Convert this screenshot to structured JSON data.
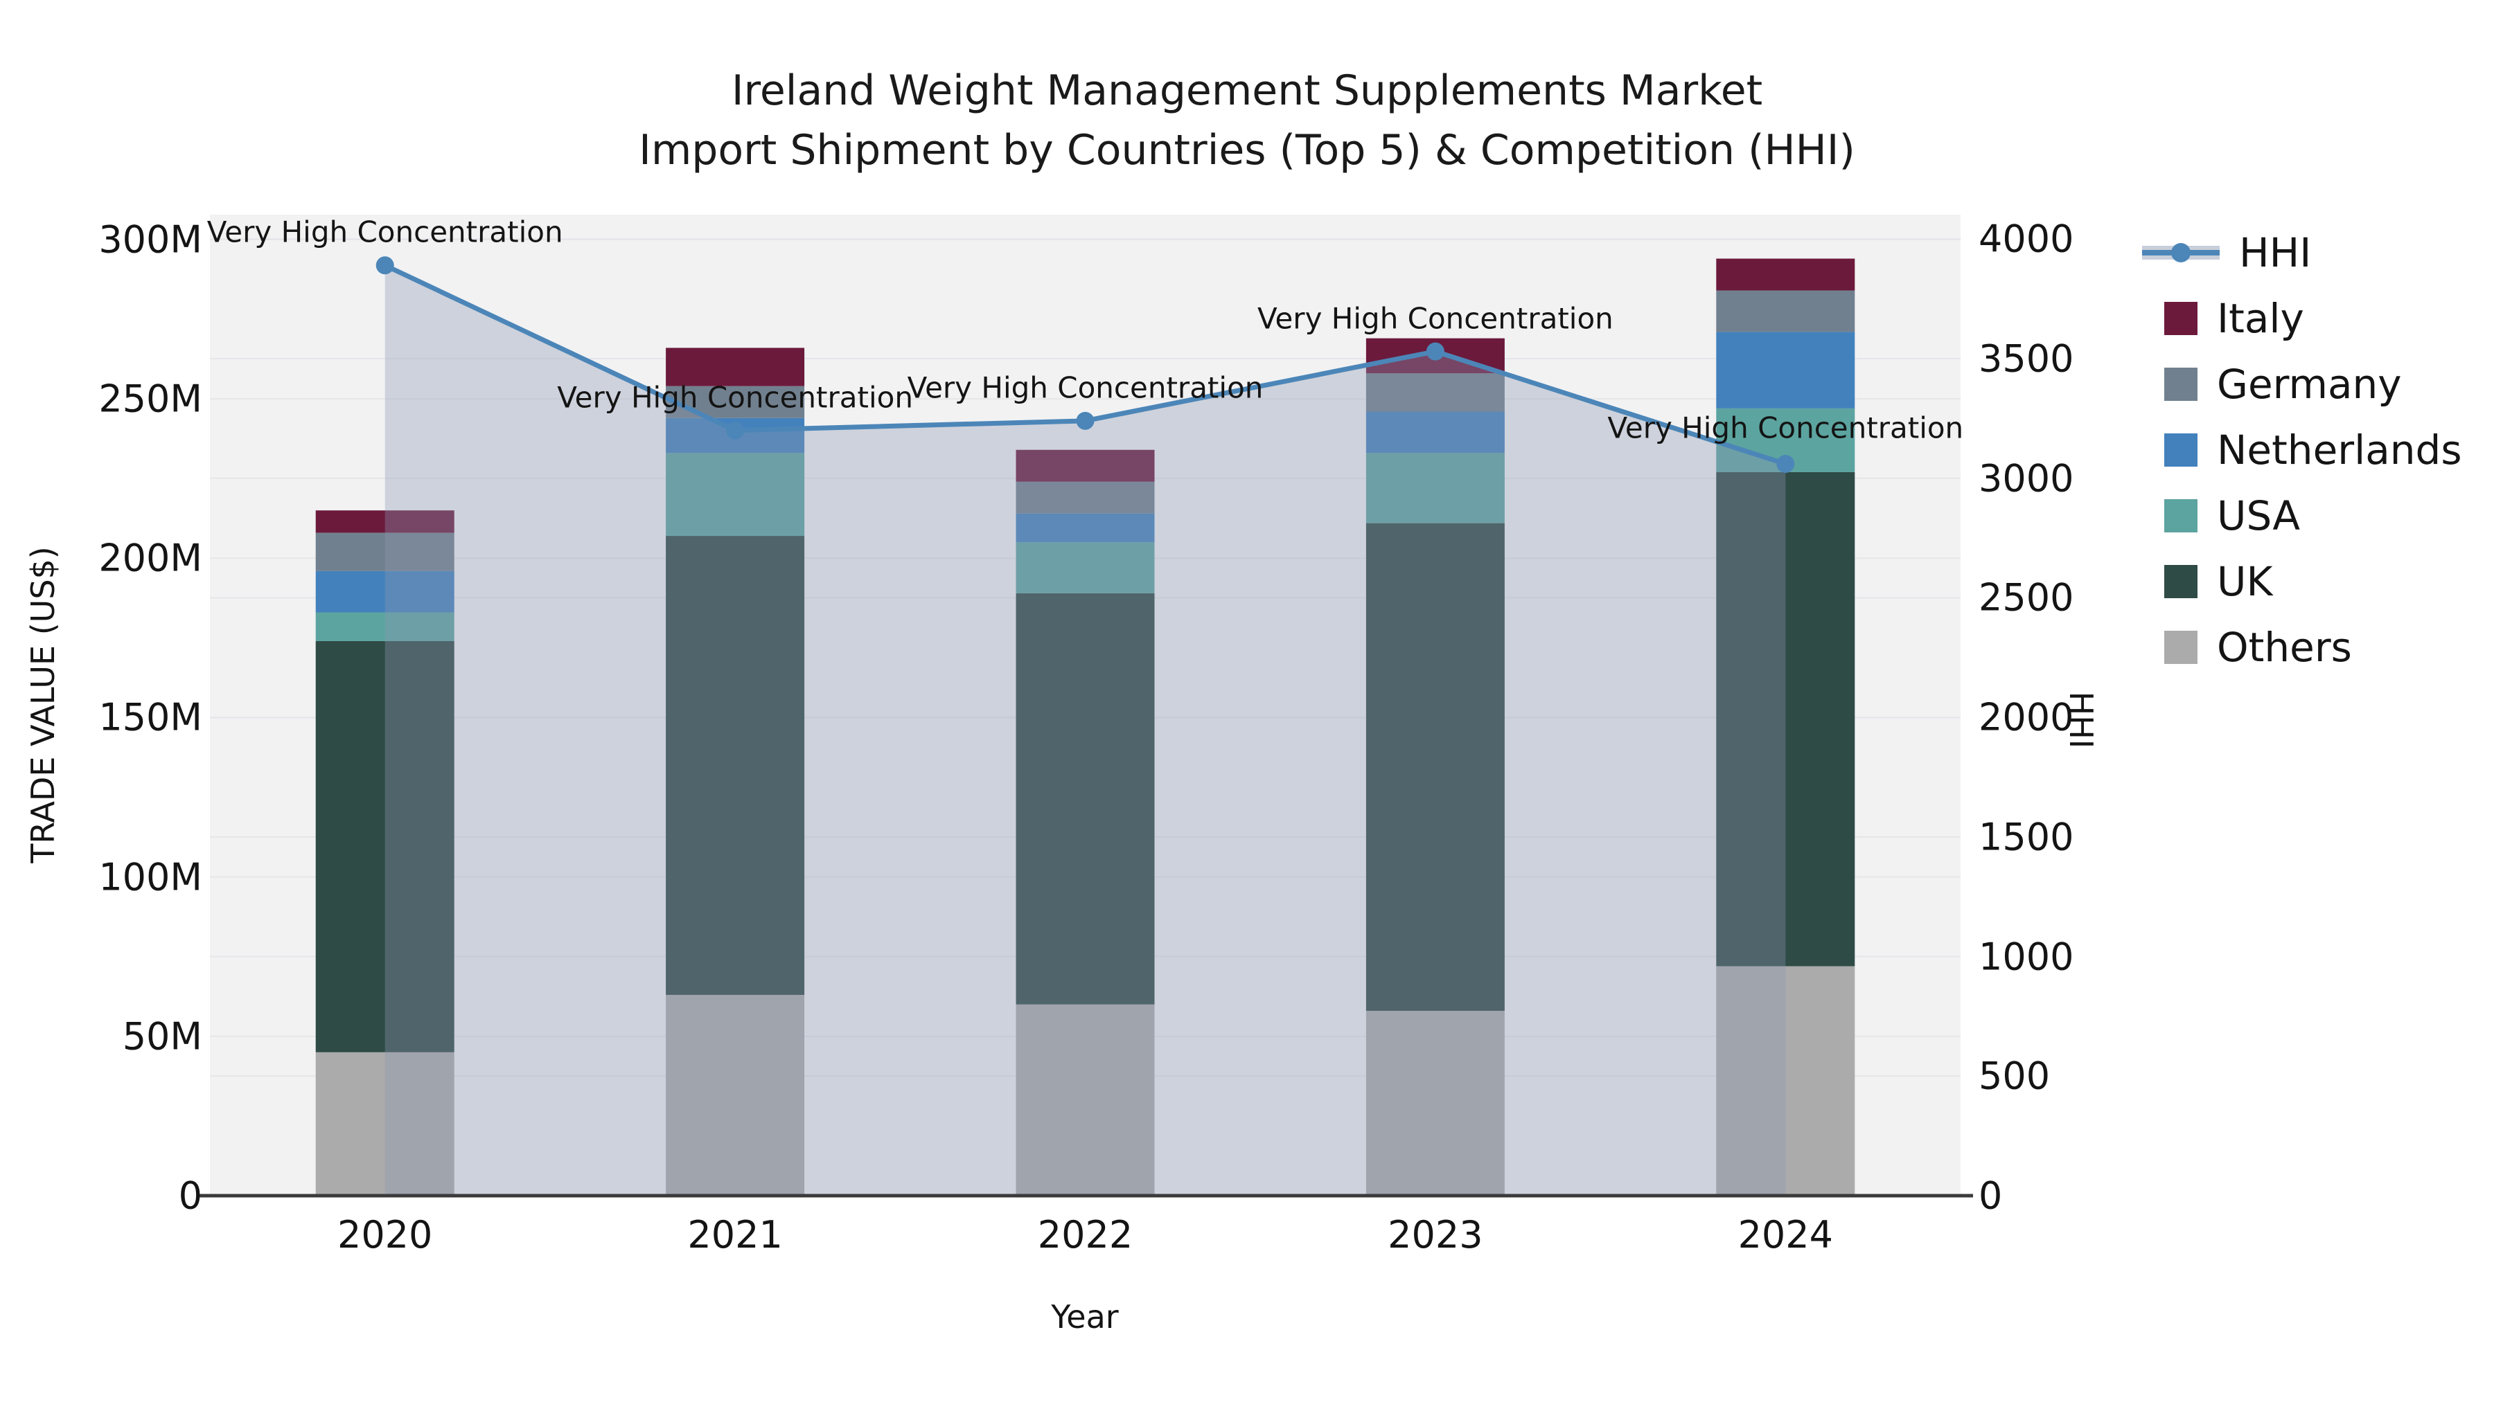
{
  "title": {
    "line1": "Ireland Weight Management Supplements Market",
    "line2": "Import Shipment by Countries (Top 5) & Competition (HHI)"
  },
  "axes": {
    "left": {
      "title": "TRADE VALUE (US$)",
      "ticks": [
        "0",
        "50M",
        "100M",
        "150M",
        "200M",
        "250M",
        "300M"
      ],
      "max": 300
    },
    "right": {
      "title": "HHI",
      "ticks": [
        "0",
        "500",
        "1000",
        "1500",
        "2000",
        "2500",
        "3000",
        "3500",
        "4000"
      ],
      "max": 4000
    },
    "x": {
      "title": "Year"
    }
  },
  "legend": {
    "items": [
      {
        "label": "HHI",
        "kind": "line",
        "color": "#4C86B8",
        "band": "#C8CEDA"
      },
      {
        "label": "Italy",
        "kind": "swatch",
        "color": "#6C1A3C"
      },
      {
        "label": "Germany",
        "kind": "swatch",
        "color": "#71808E"
      },
      {
        "label": "Netherlands",
        "kind": "swatch",
        "color": "#4381BC"
      },
      {
        "label": "USA",
        "kind": "swatch",
        "color": "#5CA4A0"
      },
      {
        "label": "UK",
        "kind": "swatch",
        "color": "#2F4B46"
      },
      {
        "label": "Others",
        "kind": "swatch",
        "color": "#ABABAB"
      }
    ]
  },
  "chart_data": {
    "type": "bar+line",
    "title": "Ireland Weight Management Supplements Market — Import Shipment by Countries (Top 5) & Competition (HHI)",
    "categories": [
      "2020",
      "2021",
      "2022",
      "2023",
      "2024"
    ],
    "units_left": "Million US$",
    "ylim_left": [
      0,
      300
    ],
    "ylim_right": [
      0,
      4000
    ],
    "ylabel_left": "TRADE VALUE (US$)",
    "ylabel_right": "HHI",
    "xlabel": "Year",
    "grid": true,
    "legend_position": "right",
    "series": [
      {
        "name": "Others",
        "color": "#ABABAB",
        "values": [
          45,
          63,
          60,
          58,
          72
        ]
      },
      {
        "name": "UK",
        "color": "#2F4B46",
        "values": [
          129,
          144,
          129,
          153,
          155
        ]
      },
      {
        "name": "USA",
        "color": "#5CA4A0",
        "values": [
          9,
          26,
          16,
          22,
          20
        ]
      },
      {
        "name": "Netherlands",
        "color": "#4381BC",
        "values": [
          13,
          11,
          9,
          13,
          24
        ]
      },
      {
        "name": "Germany",
        "color": "#71808E",
        "values": [
          12,
          10,
          10,
          12,
          13
        ]
      },
      {
        "name": "Italy",
        "color": "#6C1A3C",
        "values": [
          7,
          12,
          10,
          11,
          10
        ]
      }
    ],
    "bar_totals": [
      215,
      266,
      234,
      269,
      294
    ],
    "hhi": {
      "name": "HHI",
      "axis": "right",
      "color": "#4C86B8",
      "area_fill": "rgba(140,152,178,0.35)",
      "values": [
        3890,
        3200,
        3240,
        3530,
        3060
      ]
    },
    "annotations": [
      {
        "text": "Very High Concentration",
        "category": "2020",
        "dy": -48
      },
      {
        "text": "Very High Concentration",
        "category": "2021",
        "dy": -48
      },
      {
        "text": "Very High Concentration",
        "category": "2022",
        "dy": -48
      },
      {
        "text": "Very High Concentration",
        "category": "2023",
        "dy": -48
      },
      {
        "text": "Very High Concentration",
        "category": "2024",
        "dy": -52
      }
    ]
  },
  "colors": {
    "plot_bg": "#F2F2F3",
    "grid_line": "#E6E6EA",
    "axis_line": "#3A3A3A",
    "text": "#141414"
  }
}
